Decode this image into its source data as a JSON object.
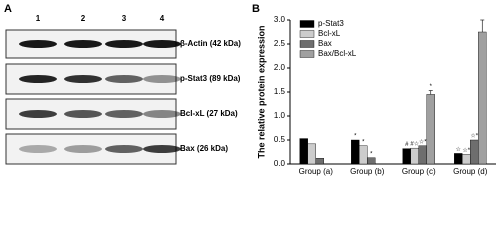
{
  "panel_labels": [
    "A",
    "B"
  ],
  "blot": {
    "lanes": [
      "1",
      "2",
      "3",
      "4"
    ],
    "rows": [
      "β-Actin (42 kDa)",
      "p-Stat3 (89 kDa)",
      "Bcl-xL (27 kDa)",
      "Bax (26 kDa)"
    ]
  },
  "chart_data": {
    "type": "bar",
    "y_label": "The relative protein expression",
    "categories": [
      "Group (a)",
      "Group (b)",
      "Group (c)",
      "Group (d)"
    ],
    "series": [
      {
        "name": "p-Stat3",
        "color": "#000000",
        "values": [
          0.53,
          0.5,
          0.32,
          0.22
        ],
        "annotations": [
          null,
          "*",
          "#",
          "☆"
        ]
      },
      {
        "name": "Bcl-xL",
        "color": "#cccccc",
        "values": [
          0.42,
          0.38,
          0.33,
          0.2
        ],
        "annotations": [
          null,
          "*",
          "#☆",
          "☆*"
        ]
      },
      {
        "name": "Bax",
        "color": "#6e6e6e",
        "values": [
          0.12,
          0.13,
          0.38,
          0.5
        ],
        "annotations": [
          null,
          "*",
          "☆*",
          "☆*"
        ]
      },
      {
        "name": "Bax/Bcl-xL",
        "color": "#a0a0a0",
        "values": [
          null,
          null,
          1.45,
          2.75
        ],
        "errors": [
          null,
          null,
          0.08,
          0.25
        ],
        "annotations": [
          null,
          null,
          "*",
          null
        ]
      }
    ],
    "ylim": [
      0,
      3.0
    ],
    "yticks": [
      {
        "value": 0,
        "label": "0.0"
      },
      0.5,
      {
        "value": 1,
        "label": "1.0"
      },
      1.5,
      {
        "value": 2,
        "label": "2.0"
      },
      2.5,
      {
        "value": 3,
        "label": "3.0"
      }
    ],
    "legend": "upper-left"
  }
}
